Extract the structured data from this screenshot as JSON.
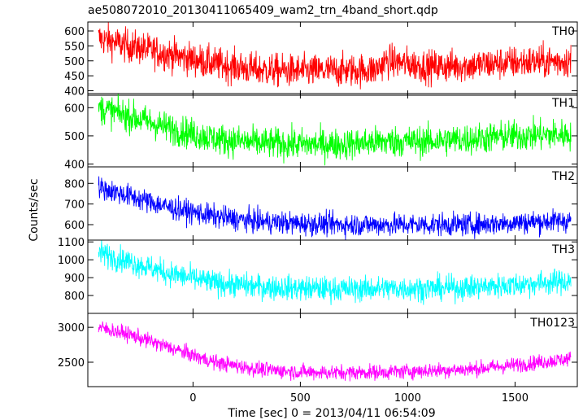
{
  "title": "ae508072010_20130411065409_wam2_trn_4band_short.qdp",
  "ylabel": "Counts/sec",
  "xlabel": "Time [sec] 0 = 2013/04/11 06:54:09",
  "chart_data": {
    "type": "line",
    "title": "ae508072010_20130411065409_wam2_trn_4band_short.qdp",
    "xlabel": "Time [sec] 0 = 2013/04/11 06:54:09",
    "ylabel": "Counts/sec",
    "xlim": [
      -490,
      1790
    ],
    "x_ticks": [
      0,
      500,
      1000,
      1500
    ],
    "x_data_range": [
      -440,
      1760
    ],
    "grid": false,
    "panels": [
      {
        "name": "TH0",
        "color": "#ff0000",
        "ylim": [
          385,
          630
        ],
        "y_ticks": [
          400,
          450,
          500,
          550,
          600
        ],
        "trend_x": [
          -440,
          -300,
          -100,
          100,
          300,
          500,
          700,
          850,
          900,
          1100,
          1300,
          1500,
          1760
        ],
        "trend_y": [
          575,
          550,
          520,
          490,
          470,
          465,
          468,
          470,
          500,
          480,
          485,
          495,
          500
        ],
        "noise": 28
      },
      {
        "name": "TH1",
        "color": "#00ff00",
        "ylim": [
          390,
          650
        ],
        "y_ticks": [
          400,
          500,
          600
        ],
        "trend_x": [
          -440,
          -300,
          -100,
          100,
          300,
          500,
          700,
          900,
          1100,
          1300,
          1500,
          1760
        ],
        "trend_y": [
          600,
          570,
          525,
          490,
          475,
          470,
          470,
          480,
          480,
          490,
          500,
          505
        ],
        "noise": 28
      },
      {
        "name": "TH2",
        "color": "#0000ff",
        "ylim": [
          525,
          880
        ],
        "y_ticks": [
          600,
          700,
          800
        ],
        "trend_x": [
          -440,
          -300,
          -100,
          100,
          300,
          500,
          700,
          900,
          1100,
          1300,
          1500,
          1760
        ],
        "trend_y": [
          780,
          740,
          680,
          640,
          615,
          605,
          600,
          600,
          600,
          600,
          610,
          620
        ],
        "noise": 28
      },
      {
        "name": "TH3",
        "color": "#00ffff",
        "ylim": [
          700,
          1110
        ],
        "y_ticks": [
          800,
          900,
          1000,
          1100
        ],
        "trend_x": [
          -440,
          -300,
          -100,
          100,
          300,
          500,
          700,
          900,
          1100,
          1300,
          1500,
          1760
        ],
        "trend_y": [
          1040,
          990,
          920,
          870,
          850,
          840,
          835,
          840,
          840,
          845,
          860,
          880
        ],
        "noise": 35
      },
      {
        "name": "TH0123",
        "color": "#ff00ff",
        "ylim": [
          2150,
          3200
        ],
        "y_ticks": [
          2500,
          3000
        ],
        "trend_x": [
          -440,
          -300,
          -100,
          100,
          300,
          500,
          700,
          900,
          1100,
          1300,
          1500,
          1760
        ],
        "trend_y": [
          3000,
          2900,
          2700,
          2500,
          2400,
          2360,
          2350,
          2360,
          2380,
          2400,
          2460,
          2550
        ],
        "noise": 55
      }
    ]
  }
}
